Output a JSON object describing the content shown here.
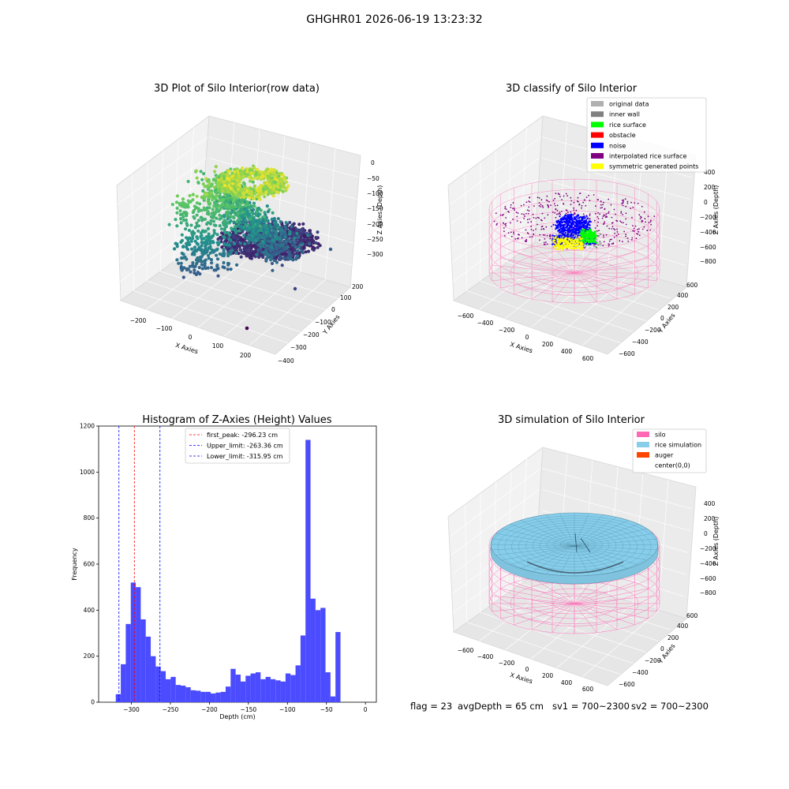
{
  "suptitle": "GHGHR01 2026-06-19 13:23:32",
  "footer": {
    "flag": "flag = 23",
    "avg_depth": "avgDepth = 65 cm",
    "sv1": "sv1 = 700~2300",
    "sv2": "sv2 = 700~2300"
  },
  "chart_data": [
    {
      "type": "scatter",
      "subtype": "3d",
      "title": "3D Plot of Silo Interior(row data)",
      "xlabel": "X Axies",
      "ylabel": "Y Axies",
      "zlabel": "Z Axies (Depth)",
      "x_ticks": [
        "−200",
        "−100",
        "0",
        "100",
        "200"
      ],
      "y_ticks": [
        "−400",
        "−300",
        "−200",
        "−100",
        "0",
        "100",
        "200"
      ],
      "z_ticks": [
        "0",
        "−50",
        "−100",
        "−150",
        "−200",
        "−250",
        "−300"
      ],
      "colormap": "viridis"
    },
    {
      "type": "scatter",
      "subtype": "3d",
      "title": "3D classify of Silo Interior",
      "xlabel": "X Axies",
      "ylabel": "Y Axies",
      "zlabel": "Z Axies (Depth)",
      "x_ticks": [
        "−600",
        "−400",
        "−200",
        "0",
        "200",
        "400",
        "600"
      ],
      "y_ticks": [
        "−600",
        "−400",
        "−200",
        "0",
        "200",
        "400",
        "600"
      ],
      "z_ticks": [
        "400",
        "200",
        "0",
        "−200",
        "−400",
        "−600",
        "−800"
      ],
      "legend_position": "top-right",
      "legend": [
        {
          "label": "original data",
          "color": "#b0b0b0"
        },
        {
          "label": "inner wall",
          "color": "#808080"
        },
        {
          "label": "rice surface",
          "color": "#00ff00"
        },
        {
          "label": "obstacle",
          "color": "#ff0000"
        },
        {
          "label": "noise",
          "color": "#0000ff"
        },
        {
          "label": "interpolated rice surface",
          "color": "#800080"
        },
        {
          "label": "symmetric generated points",
          "color": "#ffff00"
        }
      ]
    },
    {
      "type": "bar",
      "subtype": "histogram",
      "title": "Histogram of Z-Axies (Height) Values",
      "xlabel": "Depth (cm)",
      "ylabel": "Frequency",
      "xlim": [
        -342,
        14
      ],
      "ylim": [
        0,
        1200
      ],
      "x_ticks": [
        -300,
        -250,
        -200,
        -150,
        -100,
        -50,
        0
      ],
      "x_tick_labels": [
        "−300",
        "−250",
        "−200",
        "−150",
        "−100",
        "−50",
        "0"
      ],
      "y_ticks": [
        0,
        200,
        400,
        600,
        800,
        1000,
        1200
      ],
      "bar_color": "#4b4bff",
      "bin_start": -320,
      "bin_width": 6.4,
      "values": [
        35,
        165,
        340,
        520,
        500,
        360,
        285,
        200,
        155,
        135,
        100,
        110,
        75,
        72,
        65,
        52,
        50,
        45,
        45,
        38,
        42,
        45,
        68,
        145,
        120,
        90,
        115,
        125,
        130,
        100,
        110,
        100,
        95,
        90,
        125,
        118,
        160,
        290,
        1140,
        450,
        400,
        410,
        130,
        25,
        305
      ],
      "vlines": [
        {
          "label": "first_peak: -296.23 cm",
          "x": -296.23,
          "color": "#ff0000"
        },
        {
          "label": "Upper_limit: -263.36 cm",
          "x": -263.36,
          "color": "#0000ff"
        },
        {
          "label": "Lower_limit: -315.95 cm",
          "x": -315.95,
          "color": "#0000ff"
        }
      ],
      "legend_position": "top-center"
    },
    {
      "type": "surface",
      "subtype": "3d",
      "title": "3D simulation of Silo Interior",
      "xlabel": "X Axies",
      "ylabel": "Y Axies",
      "zlabel": "Z Axies (Depth)",
      "x_ticks": [
        "−600",
        "−400",
        "−200",
        "0",
        "200",
        "400",
        "600"
      ],
      "y_ticks": [
        "−600",
        "−400",
        "−200",
        "0",
        "200",
        "400",
        "600"
      ],
      "z_ticks": [
        "400",
        "200",
        "0",
        "−200",
        "−400",
        "−600",
        "−800"
      ],
      "legend_position": "top-right",
      "legend": [
        {
          "label": "silo",
          "color": "#ff69b4"
        },
        {
          "label": "rice simulation",
          "color": "#87ceeb"
        },
        {
          "label": "auger",
          "color": "#ff4500"
        },
        {
          "label": "center(0,0)",
          "color": "#ffffff"
        }
      ]
    }
  ]
}
